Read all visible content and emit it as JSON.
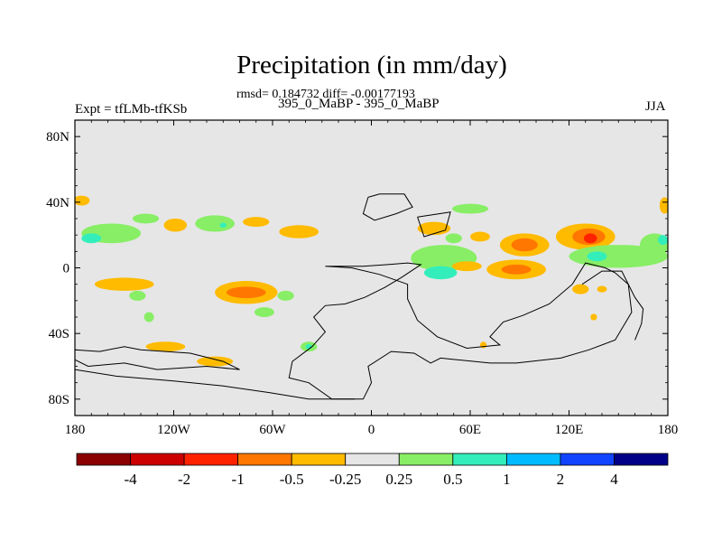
{
  "title": "Precipitation (in mm/day)",
  "stats_line": "rmsd= 0.184732 diff= -0.00177193",
  "left_label": "Expt = tfLMb-tfKSb",
  "center_label": "395_0_MaBP - 395_0_MaBP",
  "right_label": "JJA",
  "chart_data": {
    "type": "contour-map",
    "title": "Precipitation (in mm/day)",
    "x_range": [
      -180,
      180
    ],
    "y_range": [
      -90,
      90
    ],
    "x_ticks": [
      {
        "value": -180,
        "label": "180"
      },
      {
        "value": -120,
        "label": "120W"
      },
      {
        "value": -60,
        "label": "60W"
      },
      {
        "value": 0,
        "label": "0"
      },
      {
        "value": 60,
        "label": "60E"
      },
      {
        "value": 120,
        "label": "120E"
      },
      {
        "value": 180,
        "label": "180"
      }
    ],
    "y_ticks": [
      {
        "value": 80,
        "label": "80N"
      },
      {
        "value": 40,
        "label": "40N"
      },
      {
        "value": 0,
        "label": "0"
      },
      {
        "value": -40,
        "label": "40S"
      },
      {
        "value": -80,
        "label": "80S"
      }
    ],
    "colorbar": {
      "colors": [
        "#8b0000",
        "#cc0000",
        "#ff2200",
        "#ff7700",
        "#ffbb00",
        "#e6e6e6",
        "#88ee66",
        "#33eebb",
        "#00bbff",
        "#1144ff",
        "#000088"
      ],
      "labels": [
        "-4",
        "-2",
        "-1",
        "-0.5",
        "-0.25",
        "0.25",
        "0.5",
        "1",
        "2",
        "4"
      ]
    },
    "anomalies": [
      {
        "lon": -176,
        "lat": 41,
        "rx": 5,
        "ry": 3,
        "level": -0.25
      },
      {
        "lon": -158,
        "lat": 21,
        "rx": 18,
        "ry": 6,
        "level": 0.5
      },
      {
        "lon": -170,
        "lat": 18,
        "rx": 6,
        "ry": 3,
        "level": 1
      },
      {
        "lon": -137,
        "lat": 30,
        "rx": 8,
        "ry": 3,
        "level": 0.5
      },
      {
        "lon": -119,
        "lat": 26,
        "rx": 7,
        "ry": 4,
        "level": -0.25
      },
      {
        "lon": -95,
        "lat": 27,
        "rx": 12,
        "ry": 5,
        "level": 0.5
      },
      {
        "lon": -90,
        "lat": 26,
        "rx": 2,
        "ry": 1.5,
        "level": 1
      },
      {
        "lon": -70,
        "lat": 28,
        "rx": 8,
        "ry": 3,
        "level": -0.25
      },
      {
        "lon": -44,
        "lat": 22,
        "rx": 12,
        "ry": 4,
        "level": -0.25
      },
      {
        "lon": -150,
        "lat": -10,
        "rx": 18,
        "ry": 4,
        "level": -0.25
      },
      {
        "lon": -142,
        "lat": -17,
        "rx": 5,
        "ry": 3,
        "level": 0.5
      },
      {
        "lon": -135,
        "lat": -30,
        "rx": 3,
        "ry": 3,
        "level": 0.5
      },
      {
        "lon": -76,
        "lat": -15,
        "rx": 19,
        "ry": 7,
        "level": -0.25
      },
      {
        "lon": -76,
        "lat": -15,
        "rx": 12,
        "ry": 3.5,
        "level": -0.5
      },
      {
        "lon": -65,
        "lat": -27,
        "rx": 6,
        "ry": 3,
        "level": 0.5
      },
      {
        "lon": -52,
        "lat": -17,
        "rx": 5,
        "ry": 3,
        "level": 0.5
      },
      {
        "lon": -125,
        "lat": -48,
        "rx": 12,
        "ry": 3,
        "level": -0.25
      },
      {
        "lon": -95,
        "lat": -57,
        "rx": 11,
        "ry": 3,
        "level": -0.25
      },
      {
        "lon": -38,
        "lat": -48,
        "rx": 5,
        "ry": 3,
        "level": 0.5
      },
      {
        "lon": -38,
        "lat": -48,
        "rx": 2,
        "ry": 1.5,
        "level": 1
      },
      {
        "lon": 44,
        "lat": 6,
        "rx": 20,
        "ry": 8,
        "level": 0.5
      },
      {
        "lon": 42,
        "lat": -3,
        "rx": 10,
        "ry": 4,
        "level": 1
      },
      {
        "lon": 58,
        "lat": 1,
        "rx": 9,
        "ry": 3,
        "level": -0.25
      },
      {
        "lon": 60,
        "lat": 36,
        "rx": 11,
        "ry": 3,
        "level": 0.5
      },
      {
        "lon": 38,
        "lat": 24,
        "rx": 10,
        "ry": 4,
        "level": -0.25
      },
      {
        "lon": 50,
        "lat": 18,
        "rx": 5,
        "ry": 3,
        "level": 0.5
      },
      {
        "lon": 66,
        "lat": 19,
        "rx": 6,
        "ry": 3,
        "level": -0.25
      },
      {
        "lon": 93,
        "lat": 14,
        "rx": 15,
        "ry": 7,
        "level": -0.25
      },
      {
        "lon": 93,
        "lat": 14,
        "rx": 8,
        "ry": 4,
        "level": -0.5
      },
      {
        "lon": 88,
        "lat": -1,
        "rx": 18,
        "ry": 6,
        "level": -0.25
      },
      {
        "lon": 88,
        "lat": -1,
        "rx": 9,
        "ry": 3,
        "level": -0.5
      },
      {
        "lon": 130,
        "lat": 19,
        "rx": 18,
        "ry": 8,
        "level": -0.25
      },
      {
        "lon": 132,
        "lat": 19,
        "rx": 10,
        "ry": 5,
        "level": -0.5
      },
      {
        "lon": 133,
        "lat": 18,
        "rx": 4,
        "ry": 3,
        "level": -1
      },
      {
        "lon": 150,
        "lat": 7,
        "rx": 30,
        "ry": 7,
        "level": 0.5
      },
      {
        "lon": 137,
        "lat": 7,
        "rx": 6,
        "ry": 3,
        "level": 1
      },
      {
        "lon": 172,
        "lat": 14,
        "rx": 9,
        "ry": 7,
        "level": 0.5
      },
      {
        "lon": 177,
        "lat": 17,
        "rx": 3,
        "ry": 3,
        "level": 1
      },
      {
        "lon": 178,
        "lat": 38,
        "rx": 3,
        "ry": 5,
        "level": -0.25
      },
      {
        "lon": 127,
        "lat": -13,
        "rx": 5,
        "ry": 3,
        "level": -0.25
      },
      {
        "lon": 140,
        "lat": -13,
        "rx": 3,
        "ry": 2,
        "level": -0.25
      },
      {
        "lon": 135,
        "lat": -30,
        "rx": 2,
        "ry": 2,
        "level": -0.25
      },
      {
        "lon": 68,
        "lat": -47,
        "rx": 2,
        "ry": 2,
        "level": -0.25
      }
    ],
    "coastlines": [
      {
        "name": "Laurentia",
        "coords": [
          [
            -2,
            43
          ],
          [
            5,
            45
          ],
          [
            20,
            45
          ],
          [
            25,
            37
          ],
          [
            15,
            33
          ],
          [
            2,
            29
          ],
          [
            -5,
            33
          ],
          [
            -2,
            43
          ]
        ]
      },
      {
        "name": "Baltica-Siberia",
        "coords": [
          [
            28,
            31
          ],
          [
            48,
            34
          ],
          [
            45,
            23
          ],
          [
            32,
            19
          ],
          [
            28,
            31
          ]
        ]
      },
      {
        "name": "Gondwana-West",
        "coords": [
          [
            -28,
            1
          ],
          [
            -5,
            1
          ],
          [
            10,
            2
          ],
          [
            22,
            3
          ],
          [
            30,
            2
          ],
          [
            18,
            -6
          ],
          [
            8,
            -12
          ],
          [
            -4,
            -18
          ],
          [
            -16,
            -22
          ],
          [
            -28,
            -23
          ],
          [
            -35,
            -30
          ],
          [
            -28,
            -39
          ],
          [
            -36,
            -48
          ],
          [
            -48,
            -57
          ],
          [
            -50,
            -67
          ],
          [
            -38,
            -70
          ],
          [
            -24,
            -80
          ],
          [
            -5,
            -80
          ],
          [
            0,
            -70
          ],
          [
            -2,
            -60
          ],
          [
            12,
            -51
          ],
          [
            26,
            -52
          ],
          [
            36,
            -58
          ],
          [
            42,
            -55
          ],
          [
            52,
            -56
          ],
          [
            72,
            -58
          ],
          [
            88,
            -58
          ],
          [
            115,
            -55
          ],
          [
            132,
            -50
          ],
          [
            148,
            -44
          ],
          [
            158,
            -27
          ],
          [
            156,
            -10
          ],
          [
            148,
            -3
          ],
          [
            142,
            0
          ],
          [
            130,
            3
          ],
          [
            122,
            -10
          ],
          [
            108,
            -22
          ],
          [
            92,
            -29
          ],
          [
            80,
            -33
          ],
          [
            72,
            -42
          ],
          [
            78,
            -47
          ],
          [
            58,
            -49
          ],
          [
            40,
            -42
          ],
          [
            28,
            -32
          ],
          [
            22,
            -19
          ],
          [
            22,
            -10
          ],
          [
            5,
            -4
          ],
          [
            -12,
            0
          ],
          [
            -28,
            1
          ]
        ]
      },
      {
        "name": "South-Pacific-margin",
        "coords": [
          [
            -180,
            -50
          ],
          [
            -165,
            -51
          ],
          [
            -150,
            -48
          ],
          [
            -140,
            -50
          ],
          [
            -110,
            -52
          ],
          [
            -90,
            -57
          ],
          [
            -80,
            -62
          ],
          [
            -100,
            -60
          ],
          [
            -130,
            -62
          ],
          [
            -150,
            -58
          ],
          [
            -172,
            -60
          ],
          [
            -180,
            -56
          ]
        ]
      },
      {
        "name": "Polar-margin",
        "coords": [
          [
            -180,
            -62
          ],
          [
            -155,
            -66
          ],
          [
            -120,
            -69
          ],
          [
            -90,
            -72
          ],
          [
            -62,
            -76
          ],
          [
            -38,
            -80
          ],
          [
            -10,
            -80
          ]
        ]
      },
      {
        "name": "Eastern-margin",
        "coords": [
          [
            128,
            -10
          ],
          [
            140,
            -2
          ],
          [
            152,
            -2
          ],
          [
            160,
            -18
          ],
          [
            165,
            -25
          ],
          [
            164,
            -34
          ],
          [
            160,
            -44
          ]
        ]
      }
    ]
  }
}
